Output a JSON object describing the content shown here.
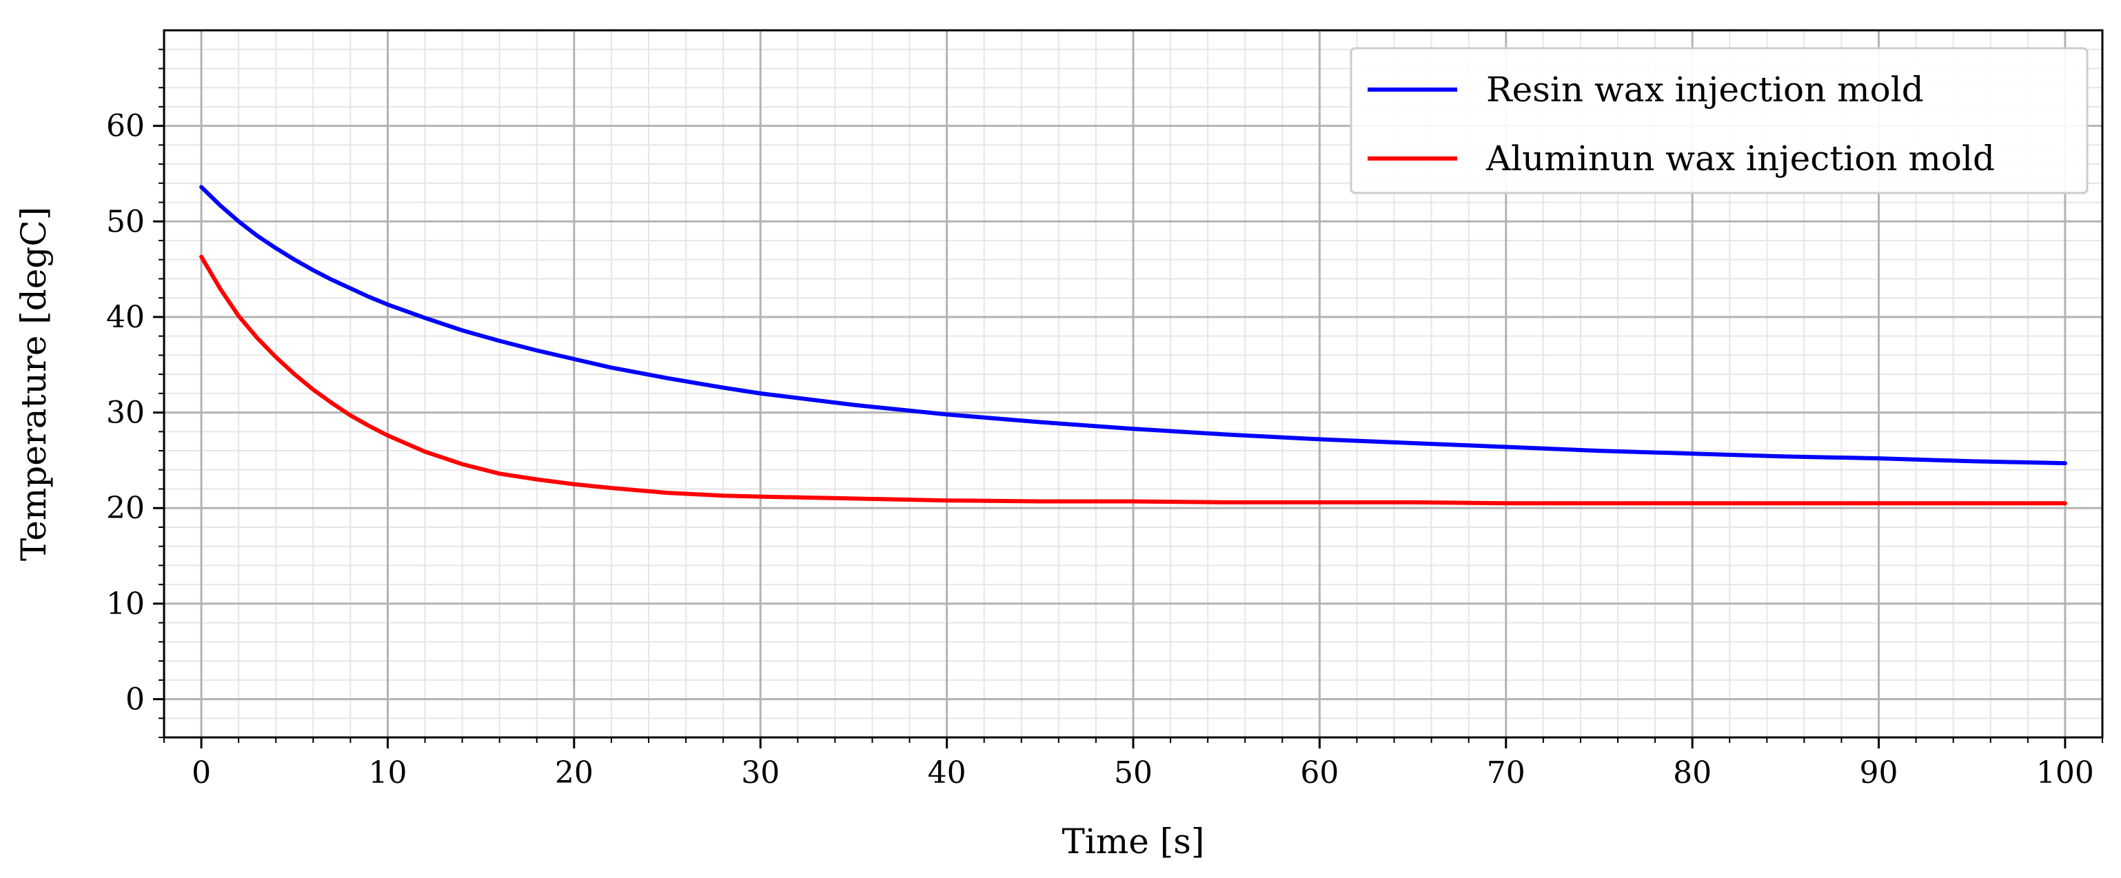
{
  "chart_data": {
    "type": "line",
    "title": "",
    "xlabel": "Time [s]",
    "ylabel": "Temperature [degC]",
    "xlim": [
      -2,
      102
    ],
    "ylim": [
      -4,
      70
    ],
    "x_ticks": [
      0,
      10,
      20,
      30,
      40,
      50,
      60,
      70,
      80,
      90,
      100
    ],
    "y_ticks": [
      0,
      10,
      20,
      30,
      40,
      50,
      60
    ],
    "x_tick_labels": [
      "0",
      "10",
      "20",
      "30",
      "40",
      "50",
      "60",
      "70",
      "80",
      "90",
      "100"
    ],
    "y_tick_labels": [
      "0",
      "10",
      "20",
      "30",
      "40",
      "50",
      "60"
    ],
    "grid": true,
    "legend_position": "top-right",
    "x": [
      0,
      1,
      2,
      3,
      4,
      5,
      6,
      7,
      8,
      9,
      10,
      12,
      14,
      16,
      18,
      20,
      22,
      25,
      28,
      30,
      35,
      40,
      45,
      50,
      55,
      60,
      65,
      70,
      75,
      80,
      85,
      90,
      95,
      100
    ],
    "series": [
      {
        "name": "Resin wax injection mold",
        "color": "#0000ff",
        "values": [
          53.6,
          51.7,
          50.0,
          48.5,
          47.2,
          46.0,
          44.9,
          43.9,
          43.0,
          42.1,
          41.3,
          39.9,
          38.6,
          37.5,
          36.5,
          35.6,
          34.7,
          33.6,
          32.6,
          32.0,
          30.8,
          29.8,
          29.0,
          28.3,
          27.7,
          27.2,
          26.8,
          26.4,
          26.0,
          25.7,
          25.4,
          25.2,
          24.9,
          24.7
        ]
      },
      {
        "name": "Aluminun wax injection mold",
        "color": "#ff0000",
        "values": [
          46.3,
          43.0,
          40.1,
          37.8,
          35.8,
          34.0,
          32.4,
          31.0,
          29.7,
          28.6,
          27.6,
          25.9,
          24.6,
          23.6,
          23.0,
          22.5,
          22.1,
          21.6,
          21.3,
          21.2,
          21.0,
          20.8,
          20.7,
          20.7,
          20.6,
          20.6,
          20.6,
          20.5,
          20.5,
          20.5,
          20.5,
          20.5,
          20.5,
          20.5
        ]
      }
    ]
  }
}
